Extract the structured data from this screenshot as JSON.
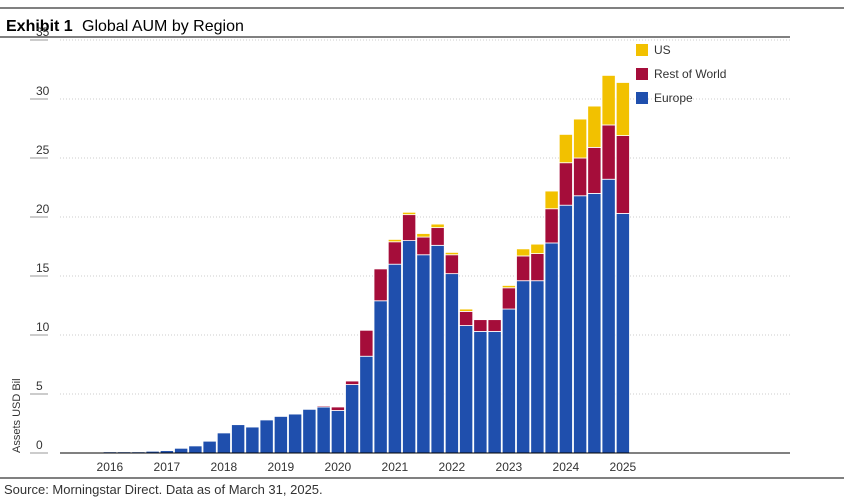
{
  "chart_data": {
    "type": "stacked-bar",
    "title_label": "Exhibit 1",
    "title": "Global AUM by Region",
    "y_label": "Assets USD Bil",
    "source": "Source: Morningstar Direct. Data as of March 31, 2025.",
    "categories": [
      null,
      null,
      null,
      "2016",
      null,
      null,
      null,
      "2017",
      null,
      null,
      null,
      "2018",
      null,
      null,
      null,
      "2019",
      null,
      null,
      null,
      "2020",
      null,
      null,
      null,
      "2021",
      null,
      null,
      null,
      "2022",
      null,
      null,
      null,
      "2023",
      null,
      null,
      null,
      "2024",
      null,
      null,
      null,
      "2025"
    ],
    "series": [
      {
        "name": "Europe",
        "color": "#1f4fad",
        "values": [
          0.05,
          0.05,
          0.05,
          0.1,
          0.1,
          0.1,
          0.15,
          0.2,
          0.4,
          0.6,
          1.0,
          1.7,
          2.4,
          2.2,
          2.8,
          3.1,
          3.3,
          3.7,
          3.9,
          3.6,
          5.8,
          8.2,
          12.9,
          16.0,
          18.0,
          16.8,
          17.6,
          15.2,
          10.8,
          10.3,
          10.3,
          12.2,
          14.6,
          14.6,
          17.8,
          21.0,
          21.8,
          22.0,
          23.2,
          20.3
        ]
      },
      {
        "name": "Rest of World",
        "color": "#a50d3a",
        "values": [
          0,
          0,
          0,
          0,
          0,
          0,
          0,
          0,
          0,
          0,
          0,
          0,
          0,
          0,
          0,
          0,
          0,
          0,
          0.1,
          0.3,
          0.3,
          2.2,
          2.7,
          1.9,
          2.2,
          1.5,
          1.5,
          1.6,
          1.2,
          1.0,
          1.0,
          1.8,
          2.1,
          2.3,
          2.9,
          3.6,
          3.2,
          3.9,
          4.6,
          6.6
        ]
      },
      {
        "name": "US",
        "color": "#f2c100",
        "values": [
          0,
          0,
          0,
          0,
          0,
          0,
          0,
          0,
          0,
          0,
          0,
          0,
          0,
          0,
          0,
          0,
          0,
          0,
          0,
          0,
          0,
          0,
          0,
          0.2,
          0.2,
          0.3,
          0.3,
          0.2,
          0.2,
          0,
          0,
          0.2,
          0.6,
          0.8,
          1.5,
          2.4,
          3.3,
          3.5,
          4.2,
          4.5
        ]
      }
    ],
    "ylim": [
      0,
      35
    ],
    "yticks": [
      0,
      5,
      10,
      15,
      20,
      25,
      30,
      35
    ],
    "grid": true,
    "legend": "top-right"
  }
}
